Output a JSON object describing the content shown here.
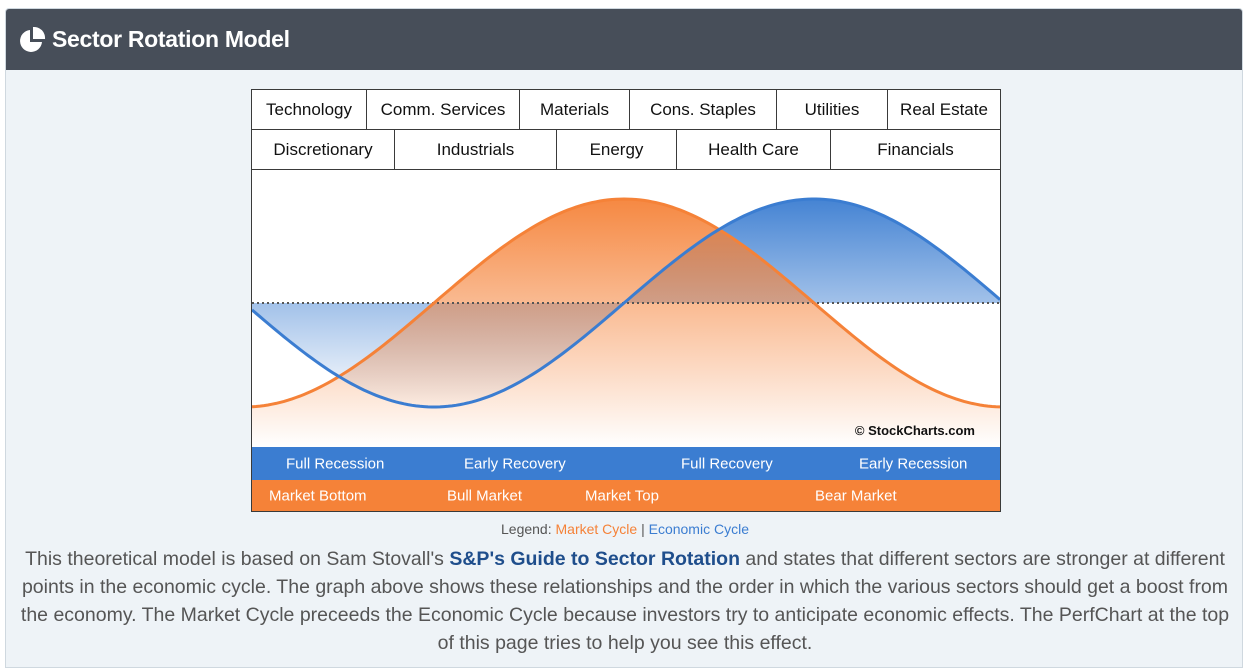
{
  "header": {
    "title": "Sector Rotation Model",
    "icon": "pie-chart-icon"
  },
  "sectors": {
    "row1": [
      "Technology",
      "Comm. Services",
      "Materials",
      "Cons. Staples",
      "Utilities",
      "Real Estate"
    ],
    "row2": [
      "Discretionary",
      "Industrials",
      "Energy",
      "Health Care",
      "Financials"
    ]
  },
  "chart_data": {
    "type": "line",
    "title": "Sector Rotation Model",
    "series": [
      {
        "name": "Market Cycle",
        "color": "#f58238"
      },
      {
        "name": "Economic Cycle",
        "color": "#3b7dd1"
      }
    ],
    "copyright": "© StockCharts.com",
    "economic_phases": [
      "Full Recession",
      "Early Recovery",
      "Full Recovery",
      "Early Recession"
    ],
    "market_phases": [
      "Market Bottom",
      "Bull Market",
      "Market Top",
      "Bear Market"
    ]
  },
  "legend": {
    "prefix": "Legend:",
    "market": "Market Cycle",
    "separator": "|",
    "economic": "Economic Cycle"
  },
  "description": {
    "part1": "This theoretical model is based on Sam Stovall's ",
    "link": "S&P's Guide to Sector Rotation",
    "part2": " and states that different sectors are stronger at different points in the economic cycle. The graph above shows these relationships and the order in which the various sectors should get a boost from the economy. The Market Cycle preceeds the Economic Cycle because investors try to anticipate economic effects. The PerfChart at the top of this page tries to help you see this effect."
  },
  "colors": {
    "header_bg": "#474e59",
    "orange": "#f58238",
    "blue": "#3b7dd1",
    "link": "#1f4e8c"
  }
}
